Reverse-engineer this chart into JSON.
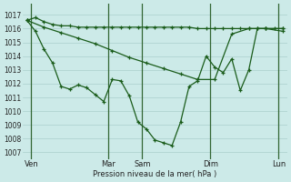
{
  "background_color": "#cceae8",
  "grid_color": "#aad0cc",
  "line_color": "#1a5c1a",
  "ylabel_text": "Pression niveau de la mer( hPa )",
  "ylim": [
    1006.5,
    1017.8
  ],
  "yticks": [
    1007,
    1008,
    1009,
    1010,
    1011,
    1012,
    1013,
    1014,
    1015,
    1016,
    1017
  ],
  "xlim": [
    -0.5,
    30.5
  ],
  "x_day_labels": [
    "Ven",
    "Mar",
    "Sam",
    "Dim",
    "Lun"
  ],
  "x_day_positions": [
    0.5,
    9.5,
    13.5,
    21.5,
    29.5
  ],
  "x_vline_positions": [
    0.5,
    9.5,
    13.5,
    21.5,
    29.5
  ],
  "series1_x": [
    0,
    1,
    2,
    3,
    4,
    5,
    6,
    7,
    8,
    9,
    10,
    11,
    12,
    13,
    14,
    15,
    16,
    17,
    18,
    19,
    20,
    21,
    22,
    23,
    24,
    25,
    26,
    27,
    28,
    29,
    30
  ],
  "series1_y": [
    1016.6,
    1016.8,
    1016.5,
    1016.3,
    1016.2,
    1016.2,
    1016.1,
    1016.1,
    1016.1,
    1016.1,
    1016.1,
    1016.1,
    1016.1,
    1016.1,
    1016.1,
    1016.1,
    1016.1,
    1016.1,
    1016.1,
    1016.1,
    1016.0,
    1016.0,
    1016.0,
    1016.0,
    1016.0,
    1016.0,
    1016.0,
    1016.0,
    1016.0,
    1016.0,
    1016.0
  ],
  "series2_x": [
    0,
    2,
    4,
    6,
    8,
    10,
    12,
    14,
    16,
    18,
    20,
    22,
    24,
    26,
    28,
    30
  ],
  "series2_y": [
    1016.6,
    1016.1,
    1015.7,
    1015.3,
    1014.9,
    1014.4,
    1013.9,
    1013.5,
    1013.1,
    1012.7,
    1012.3,
    1012.3,
    1015.6,
    1016.0,
    1016.0,
    1016.0
  ],
  "series3_x": [
    0,
    1,
    2,
    3,
    4,
    5,
    6,
    7,
    8,
    9,
    10,
    11,
    12,
    13,
    14,
    15,
    16,
    17,
    18,
    19,
    20,
    21,
    22,
    23,
    24,
    25,
    26,
    27,
    28,
    30
  ],
  "series3_y": [
    1016.6,
    1015.8,
    1014.5,
    1013.5,
    1011.8,
    1011.6,
    1011.9,
    1011.7,
    1011.2,
    1010.7,
    1012.3,
    1012.2,
    1011.1,
    1009.2,
    1008.7,
    1007.9,
    1007.7,
    1007.5,
    1009.2,
    1011.8,
    1012.2,
    1014.0,
    1013.2,
    1012.8,
    1013.8,
    1011.5,
    1013.0,
    1016.0,
    1016.0,
    1015.8
  ]
}
